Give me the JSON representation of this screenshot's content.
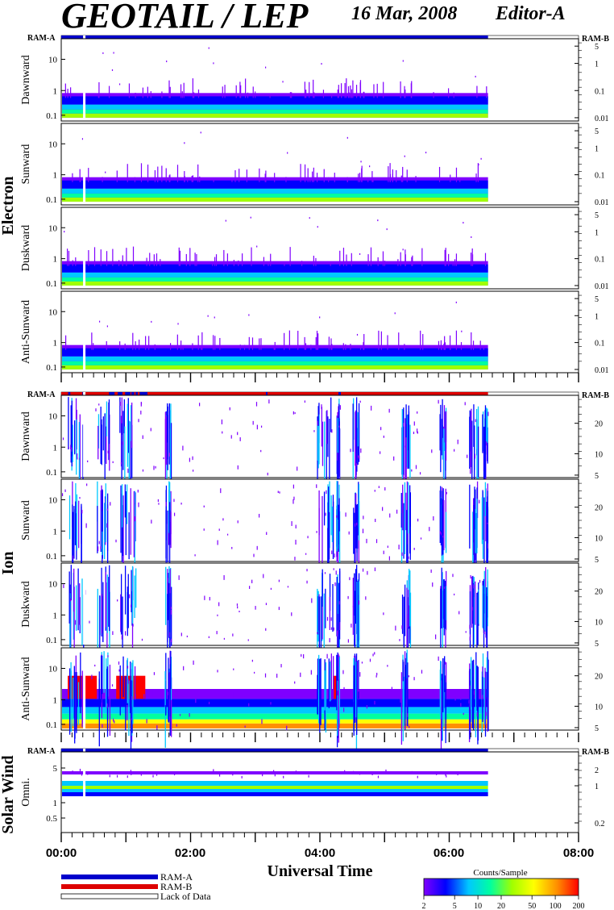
{
  "header": {
    "title": "GEOTAIL / LEP",
    "date": "16 Mar, 2008",
    "editor": "Editor-A"
  },
  "colorbar": {
    "title": "Counts/Sample",
    "ticks": [
      "2",
      "5",
      "10",
      "20",
      "50",
      "100",
      "200"
    ],
    "colors": [
      "#7f00ff",
      "#0000ff",
      "#00c8ff",
      "#00ffa0",
      "#a0ff00",
      "#ffff00",
      "#ff9000",
      "#ff0000"
    ]
  },
  "legend": {
    "ram_a": "RAM-A",
    "ram_b": "RAM-B",
    "lack": "Lack of Data",
    "ram_a_color": "#0000cc",
    "ram_b_color": "#dd0000"
  },
  "chart_data": {
    "type": "heatmap",
    "xlabel": "Universal Time",
    "x_ticks": [
      "00:00",
      "02:00",
      "04:00",
      "06:00",
      "08:00"
    ],
    "x_range_hours": [
      0,
      8
    ],
    "data_end_hours": 6.6,
    "data_gap_hours": 0.35,
    "groups": [
      {
        "name": "Electron",
        "ram_left": "RAM-A",
        "ram_right": "RAM-B",
        "mode_colors": [
          "#0000cc"
        ],
        "panels": [
          {
            "label": "Dawnward",
            "left_ticks": [
              "10",
              "1",
              "0.1"
            ],
            "right_ticks": [
              "5",
              "1",
              "0.1",
              "0.01"
            ],
            "profile": "electron"
          },
          {
            "label": "Sunward",
            "left_ticks": [
              "10",
              "1",
              "0.1"
            ],
            "right_ticks": [
              "5",
              "1",
              "0.1",
              "0.01"
            ],
            "profile": "electron"
          },
          {
            "label": "Duskward",
            "left_ticks": [
              "10",
              "1",
              "0.1"
            ],
            "right_ticks": [
              "5",
              "1",
              "0.1",
              "0.01"
            ],
            "profile": "electron"
          },
          {
            "label": "Anti-Sunward",
            "left_ticks": [
              "10",
              "1",
              "0.1"
            ],
            "right_ticks": [
              "5",
              "1",
              "0.1",
              "0.01"
            ],
            "profile": "electron"
          }
        ]
      },
      {
        "name": "Ion",
        "ram_left": "RAM-A",
        "ram_right": "RAM-B",
        "mode_colors": [
          "#0000cc",
          "#dd0000"
        ],
        "panels": [
          {
            "label": "Dawnward",
            "left_ticks": [
              "10",
              "1",
              "0.1"
            ],
            "right_ticks": [
              "20",
              "10",
              "5"
            ],
            "profile": "ion"
          },
          {
            "label": "Sunward",
            "left_ticks": [
              "10",
              "1",
              "0.1"
            ],
            "right_ticks": [
              "20",
              "10",
              "5"
            ],
            "profile": "ion"
          },
          {
            "label": "Duskward",
            "left_ticks": [
              "10",
              "1",
              "0.1"
            ],
            "right_ticks": [
              "20",
              "10",
              "5"
            ],
            "profile": "ion"
          },
          {
            "label": "Anti-Sunward",
            "left_ticks": [
              "10",
              "1",
              "0.1"
            ],
            "right_ticks": [
              "20",
              "10",
              "5"
            ],
            "profile": "ion-anti"
          }
        ]
      },
      {
        "name": "Solar Wind",
        "ram_left": "RAM-A",
        "ram_right": "RAM-B",
        "mode_colors": [
          "#0000cc"
        ],
        "panels": [
          {
            "label": "Omni.",
            "left_ticks": [
              "5",
              "1",
              "0.5"
            ],
            "right_ticks": [
              "2",
              "1",
              "0.2"
            ],
            "profile": "solar"
          }
        ]
      }
    ]
  }
}
